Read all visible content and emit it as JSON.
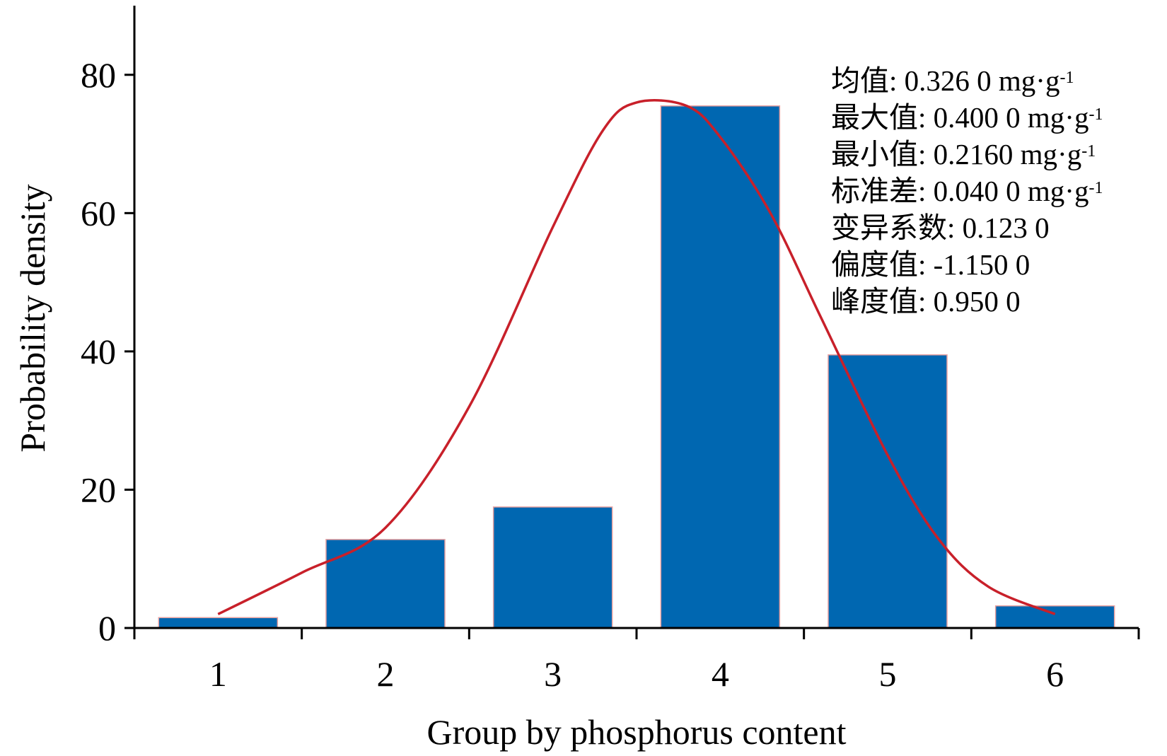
{
  "chart_data": {
    "type": "bar",
    "xlabel": "Group by phosphorus content",
    "ylabel": "Probability density",
    "categories": [
      "1",
      "2",
      "3",
      "4",
      "5",
      "6"
    ],
    "values": [
      1.5,
      12.8,
      17.5,
      75.5,
      39.5,
      3.2
    ],
    "ylim": [
      0,
      90
    ],
    "yticks": [
      0,
      20,
      40,
      60,
      80
    ],
    "bar_color": "#0067b1",
    "curve_color": "#c8202a",
    "curve": {
      "type": "line",
      "x": [
        1.0,
        1.5,
        2.0,
        2.5,
        3.0,
        3.3,
        3.5,
        3.8,
        4.0,
        4.3,
        4.6,
        5.0,
        5.3,
        5.6,
        6.0
      ],
      "y": [
        2,
        8,
        14.5,
        32,
        58,
        72,
        76,
        75.5,
        71,
        60,
        45,
        25,
        13,
        6,
        2
      ]
    },
    "annotations": [
      {
        "label": "均值",
        "value": "0.326 0 mg·g",
        "exp": "-1"
      },
      {
        "label": "最大值",
        "value": "0.400 0 mg·g",
        "exp": "-1"
      },
      {
        "label": "最小值",
        "value": "0.2160 mg·g",
        "exp": "-1"
      },
      {
        "label": "标准差",
        "value": "0.040 0 mg·g",
        "exp": "-1"
      },
      {
        "label": "变异系数",
        "value": "0.123 0",
        "exp": ""
      },
      {
        "label": "偏度值",
        "value": "-1.150 0",
        "exp": ""
      },
      {
        "label": "峰度值",
        "value": "0.950 0",
        "exp": ""
      }
    ]
  }
}
